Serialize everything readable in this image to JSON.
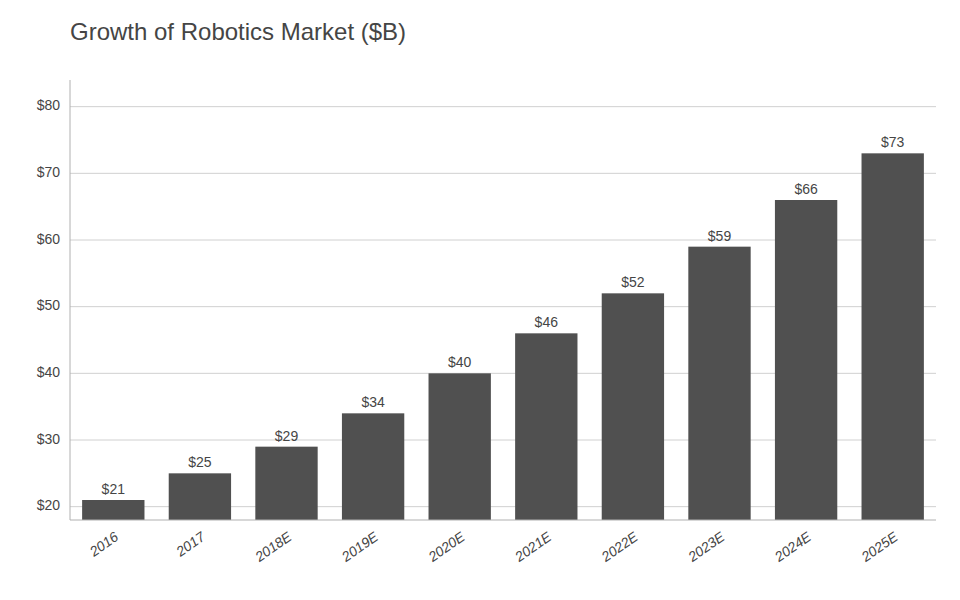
{
  "chart_data": {
    "type": "bar",
    "title": "Growth of Robotics Market ($B)",
    "categories": [
      "2016",
      "2017",
      "2018E",
      "2019E",
      "2020E",
      "2021E",
      "2022E",
      "2023E",
      "2024E",
      "2025E"
    ],
    "values": [
      21,
      25,
      29,
      34,
      40,
      46,
      52,
      59,
      66,
      73
    ],
    "value_labels": [
      "$21",
      "$25",
      "$29",
      "$34",
      "$40",
      "$46",
      "$52",
      "$59",
      "$66",
      "$73"
    ],
    "data_labels": true,
    "color": "#505050",
    "ylim": [
      18,
      84
    ],
    "yticks": [
      {
        "value": 20,
        "label": "$20"
      },
      {
        "value": 30,
        "label": "$30"
      },
      {
        "value": 40,
        "label": "$40"
      },
      {
        "value": 50,
        "label": "$50"
      },
      {
        "value": 60,
        "label": "$60"
      },
      {
        "value": 70,
        "label": "$70"
      },
      {
        "value": 80,
        "label": "$80"
      }
    ],
    "grid": true
  }
}
